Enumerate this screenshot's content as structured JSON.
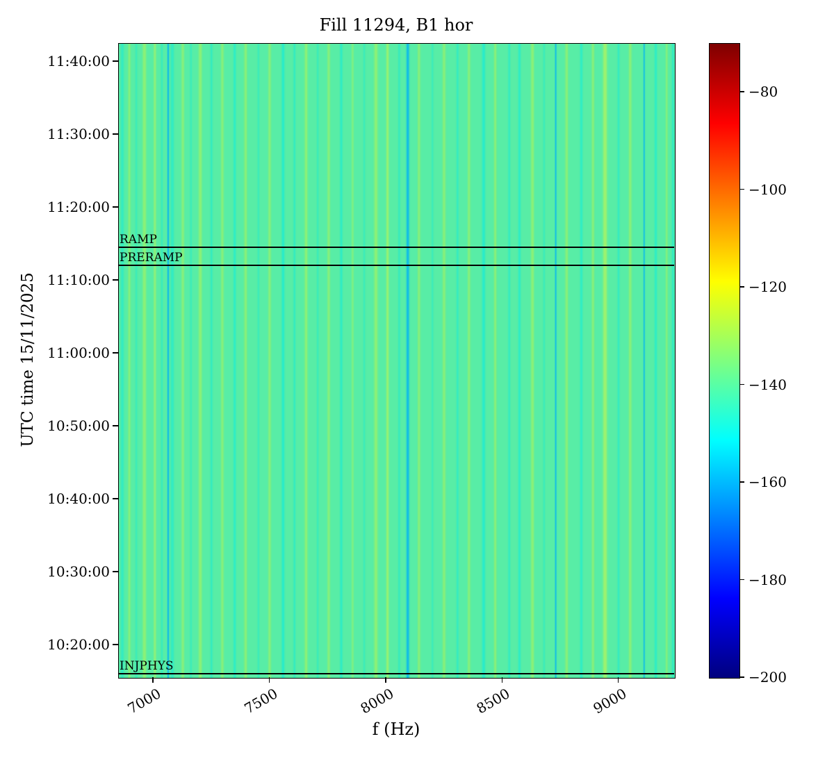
{
  "figure": {
    "background": "#ffffff"
  },
  "chart_data": {
    "type": "heatmap",
    "title": "Fill 11294, B1 hor",
    "xlabel": "f (Hz)",
    "ylabel": "UTC time 15/11/2025",
    "date": "15/11/2025",
    "beam": "B1",
    "plane": "hor",
    "fill_number": 11294,
    "x_range_hz": [
      6850,
      9240
    ],
    "x_ticks_hz": [
      7000,
      7500,
      8000,
      8500,
      9000
    ],
    "y_range_utc": [
      "10:15:30",
      "11:42:30"
    ],
    "y_ticks_utc": [
      "11:40:00",
      "11:30:00",
      "11:20:00",
      "11:10:00",
      "11:00:00",
      "10:50:00",
      "10:40:00",
      "10:30:00",
      "10:20:00"
    ],
    "grid": false,
    "legend": "none",
    "annotations": [
      {
        "label": "RAMP",
        "time": "11:14:30",
        "line_color": "#000000"
      },
      {
        "label": "PRERAMP",
        "time": "11:12:00",
        "line_color": "#000000"
      },
      {
        "label": "INJPHYS",
        "time": "10:16:00",
        "line_color": "#000000"
      }
    ],
    "colorbar": {
      "position": "right",
      "vmin": -200,
      "vmax": -70,
      "ticks": [
        -80,
        -100,
        -120,
        -140,
        -160,
        -180,
        -200
      ],
      "colormap": "jet",
      "stops": [
        [
          0.0,
          "#00007f"
        ],
        [
          0.125,
          "#0000ff"
        ],
        [
          0.375,
          "#00ffff"
        ],
        [
          0.625,
          "#ffff00"
        ],
        [
          0.875,
          "#ff0000"
        ],
        [
          1.0,
          "#7f0000"
        ]
      ]
    },
    "background_level_dB": -140,
    "base_color": "#58eda6",
    "stripe_colors": {
      "cyan": "#17ecd9",
      "blue": "#00b2f6",
      "yellowgreen": "#a9f45c",
      "yellow": "#ccf64a"
    },
    "stripe_format": [
      "f_hz",
      "width_hz",
      "color",
      "alpha"
    ],
    "stripes": [
      [
        6865,
        10,
        "cyan",
        0.45
      ],
      [
        6895,
        8,
        "yellowgreen",
        0.5
      ],
      [
        6925,
        6,
        "cyan",
        0.35
      ],
      [
        6960,
        12,
        "yellowgreen",
        0.55
      ],
      [
        7005,
        8,
        "yellow",
        0.4
      ],
      [
        7035,
        6,
        "cyan",
        0.4
      ],
      [
        7062,
        5,
        "blue",
        0.85
      ],
      [
        7080,
        10,
        "cyan",
        0.5
      ],
      [
        7125,
        9,
        "yellowgreen",
        0.5
      ],
      [
        7160,
        6,
        "cyan",
        0.35
      ],
      [
        7200,
        11,
        "yellowgreen",
        0.55
      ],
      [
        7248,
        7,
        "cyan",
        0.45
      ],
      [
        7295,
        9,
        "yellowgreen",
        0.5
      ],
      [
        7348,
        8,
        "cyan",
        0.55
      ],
      [
        7395,
        10,
        "yellowgreen",
        0.5
      ],
      [
        7450,
        6,
        "cyan",
        0.35
      ],
      [
        7498,
        9,
        "yellowgreen",
        0.5
      ],
      [
        7556,
        9,
        "cyan",
        0.65
      ],
      [
        7605,
        7,
        "cyan",
        0.45
      ],
      [
        7655,
        10,
        "yellowgreen",
        0.55
      ],
      [
        7705,
        6,
        "cyan",
        0.35
      ],
      [
        7752,
        9,
        "yellowgreen",
        0.5
      ],
      [
        7806,
        8,
        "cyan",
        0.55
      ],
      [
        7855,
        7,
        "yellowgreen",
        0.4
      ],
      [
        7905,
        6,
        "cyan",
        0.35
      ],
      [
        7955,
        12,
        "yellowgreen",
        0.55
      ],
      [
        8005,
        9,
        "yellow",
        0.45
      ],
      [
        8055,
        6,
        "cyan",
        0.45
      ],
      [
        8092,
        9,
        "blue",
        0.75
      ],
      [
        8140,
        9,
        "yellowgreen",
        0.5
      ],
      [
        8198,
        6,
        "cyan",
        0.35
      ],
      [
        8248,
        10,
        "yellowgreen",
        0.5
      ],
      [
        8306,
        7,
        "cyan",
        0.45
      ],
      [
        8355,
        9,
        "yellowgreen",
        0.5
      ],
      [
        8418,
        10,
        "cyan",
        0.65
      ],
      [
        8468,
        9,
        "yellowgreen",
        0.5
      ],
      [
        8528,
        7,
        "cyan",
        0.45
      ],
      [
        8572,
        8,
        "cyan",
        0.55
      ],
      [
        8628,
        10,
        "yellowgreen",
        0.55
      ],
      [
        8678,
        6,
        "cyan",
        0.35
      ],
      [
        8728,
        4,
        "blue",
        0.8
      ],
      [
        8775,
        10,
        "yellowgreen",
        0.5
      ],
      [
        8838,
        8,
        "cyan",
        0.55
      ],
      [
        8888,
        9,
        "yellowgreen",
        0.5
      ],
      [
        8940,
        14,
        "yellow",
        0.5
      ],
      [
        8998,
        7,
        "cyan",
        0.45
      ],
      [
        9048,
        10,
        "yellowgreen",
        0.5
      ],
      [
        9108,
        4,
        "blue",
        0.75
      ],
      [
        9158,
        8,
        "cyan",
        0.55
      ],
      [
        9205,
        7,
        "yellowgreen",
        0.45
      ],
      [
        9232,
        7,
        "cyan",
        0.5
      ]
    ]
  }
}
